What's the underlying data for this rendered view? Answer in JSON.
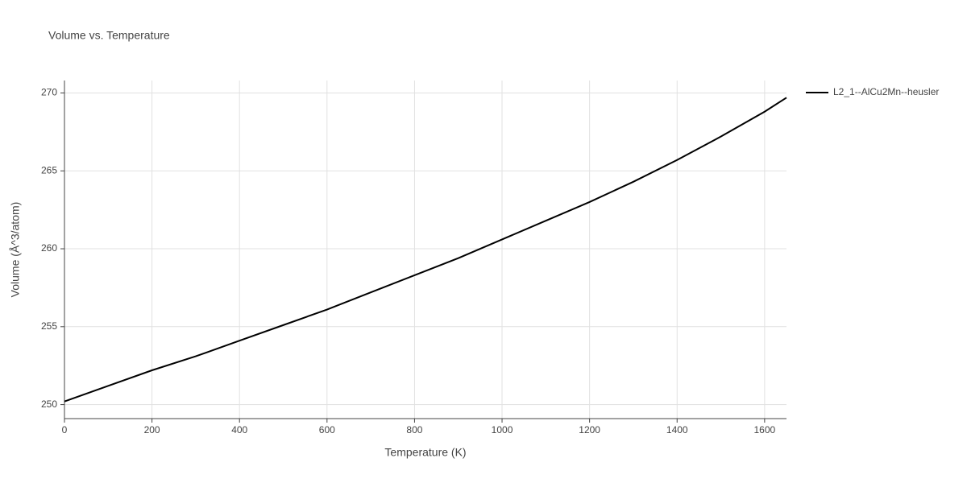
{
  "chart_data": {
    "type": "line",
    "title": "Volume vs. Temperature",
    "x_label": "Temperature (K)",
    "y_label": "Volume (Å^3/atom)",
    "x": [
      0,
      100,
      200,
      300,
      400,
      500,
      600,
      700,
      800,
      900,
      1000,
      1100,
      1200,
      1300,
      1400,
      1500,
      1600,
      1650
    ],
    "series": [
      {
        "name": "L2_1--AlCu2Mn--heusler",
        "color": "#000000",
        "values": [
          250.2,
          251.2,
          252.2,
          253.1,
          254.1,
          255.1,
          256.1,
          257.2,
          258.3,
          259.4,
          260.6,
          261.8,
          263.0,
          264.3,
          265.7,
          267.2,
          268.8,
          269.7
        ]
      }
    ],
    "xlim": [
      0,
      1650
    ],
    "ylim": [
      249.1,
      270.8
    ],
    "xticks": [
      0,
      200,
      400,
      600,
      800,
      1000,
      1200,
      1400,
      1600
    ],
    "yticks": [
      250,
      255,
      260,
      265,
      270
    ],
    "grid": true,
    "legend": "right"
  }
}
